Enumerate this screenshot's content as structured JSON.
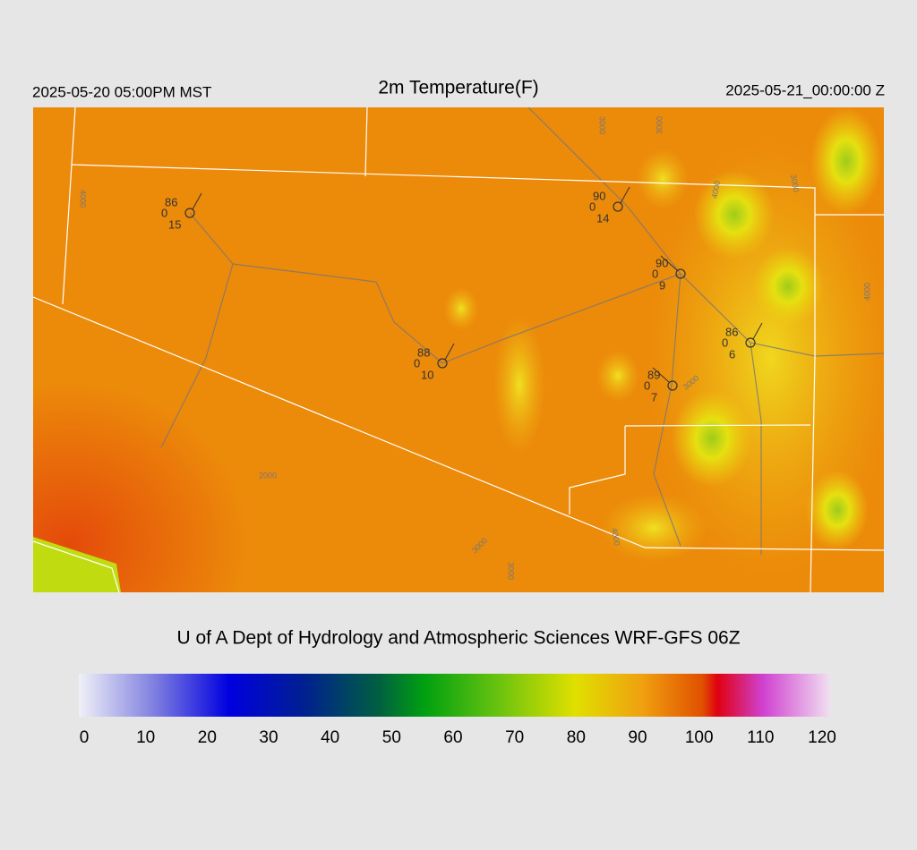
{
  "header": {
    "left": "2025-05-20 05:00PM MST",
    "title": "2m Temperature(F)",
    "right": "2025-05-21_00:00:00 Z"
  },
  "stations": [
    {
      "temp": 86,
      "dewpoint": 0,
      "wind": 15
    },
    {
      "temp": 90,
      "dewpoint": 0,
      "wind": 14
    },
    {
      "temp": 90,
      "dewpoint": 0,
      "wind": 9
    },
    {
      "temp": 86,
      "dewpoint": 0,
      "wind": 6
    },
    {
      "temp": 88,
      "dewpoint": 0,
      "wind": 10
    },
    {
      "temp": 89,
      "dewpoint": 0,
      "wind": 7
    }
  ],
  "contour_labels": [
    "4000",
    "3000",
    "3000",
    "4000",
    "3000",
    "4000",
    "3000",
    "2000",
    "3000",
    "3000",
    "4000"
  ],
  "credit": "U of A Dept of Hydrology and Atmospheric Sciences WRF-GFS 06Z",
  "colorbar": {
    "ticks": [
      0,
      10,
      20,
      30,
      40,
      50,
      60,
      70,
      80,
      90,
      100,
      110,
      120
    ]
  }
}
